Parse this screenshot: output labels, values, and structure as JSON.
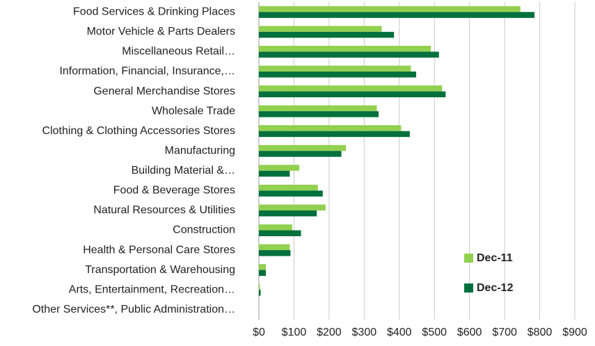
{
  "chart_data": {
    "type": "hbar",
    "categories": [
      "Food Services & Drinking Places",
      "Motor Vehicle & Parts Dealers",
      "Miscellaneous Retail…",
      "Information, Financial, Insurance,…",
      "General Merchandise Stores",
      "Wholesale Trade",
      "Clothing & Clothing Accessories Stores",
      "Manufacturing",
      "Building Material &…",
      "Food & Beverage Stores",
      "Natural Resources & Utilities",
      "Construction",
      "Health & Personal Care Stores",
      "Transportation & Warehousing",
      "Arts, Entertainment, Recreation…",
      "Other Services**, Public Administration…"
    ],
    "series": [
      {
        "name": "Dec-11",
        "color": "#92d050",
        "values": [
          745,
          350,
          490,
          433,
          522,
          336,
          405,
          248,
          115,
          168,
          190,
          95,
          88,
          20,
          3,
          0
        ]
      },
      {
        "name": "Dec-12",
        "color": "#00703c",
        "values": [
          785,
          385,
          513,
          448,
          532,
          341,
          430,
          235,
          88,
          182,
          165,
          120,
          90,
          20,
          5,
          0
        ]
      }
    ],
    "xlim": [
      0,
      900
    ],
    "xticks": [
      {
        "value": 0,
        "label": "$0"
      },
      {
        "value": 100,
        "label": "$100"
      },
      {
        "value": 200,
        "label": "$200"
      },
      {
        "value": 300,
        "label": "$300"
      },
      {
        "value": 400,
        "label": "$400"
      },
      {
        "value": 500,
        "label": "$500"
      },
      {
        "value": 600,
        "label": "$600"
      },
      {
        "value": 700,
        "label": "$700"
      },
      {
        "value": 800,
        "label": "$800"
      },
      {
        "value": 900,
        "label": "$900"
      }
    ],
    "grid": true,
    "legend": "lower right"
  }
}
